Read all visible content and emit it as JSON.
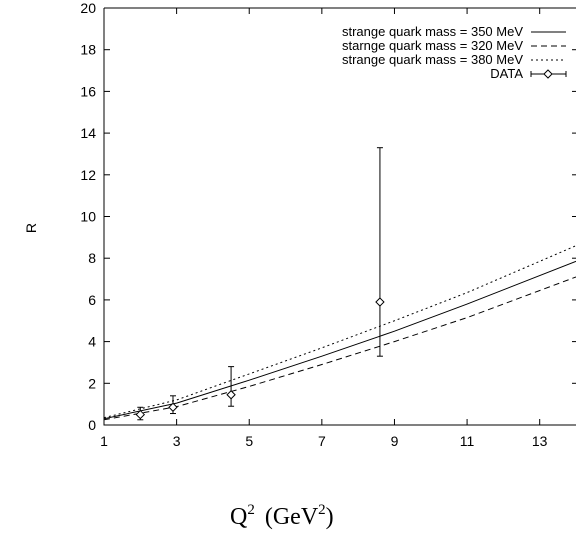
{
  "chart_data": {
    "type": "line",
    "xlabel": "Q",
    "xlabel_sup": "2",
    "xlabel_unit_open": "(GeV",
    "xlabel_unit_sup": "2",
    "xlabel_unit_close": ")",
    "ylabel": "R",
    "xlim": [
      1,
      14
    ],
    "ylim": [
      0,
      20
    ],
    "xticks": [
      1,
      3,
      5,
      7,
      9,
      11,
      13
    ],
    "yticks": [
      0,
      2,
      4,
      6,
      8,
      10,
      12,
      14,
      16,
      18,
      20
    ],
    "grid": false,
    "legend_position": "top-right",
    "series": [
      {
        "name": "strange quark mass = 350 MeV",
        "style": "solid",
        "x": [
          1,
          3,
          5,
          7,
          9,
          11,
          14
        ],
        "y": [
          0.3,
          1.05,
          2.15,
          3.3,
          4.5,
          5.8,
          7.85
        ]
      },
      {
        "name": "starnge quark mass = 320 MeV",
        "style": "dashed",
        "x": [
          1,
          3,
          5,
          7,
          9,
          11,
          14
        ],
        "y": [
          0.25,
          0.88,
          1.85,
          2.9,
          4.0,
          5.15,
          7.1
        ]
      },
      {
        "name": "strange quark mass = 380 MeV",
        "style": "dotted",
        "x": [
          1,
          3,
          5,
          7,
          9,
          11,
          14
        ],
        "y": [
          0.35,
          1.2,
          2.45,
          3.7,
          5.0,
          6.35,
          8.6
        ]
      }
    ],
    "data_points": {
      "name": "DATA",
      "points": [
        {
          "x": 2.0,
          "y": 0.5,
          "err_low": 0.25,
          "err_high": 0.85
        },
        {
          "x": 2.9,
          "y": 0.85,
          "err_low": 0.55,
          "err_high": 1.4
        },
        {
          "x": 4.5,
          "y": 1.45,
          "err_low": 0.9,
          "err_high": 2.8
        },
        {
          "x": 8.6,
          "y": 5.9,
          "err_low": 3.3,
          "err_high": 13.3
        }
      ]
    }
  }
}
